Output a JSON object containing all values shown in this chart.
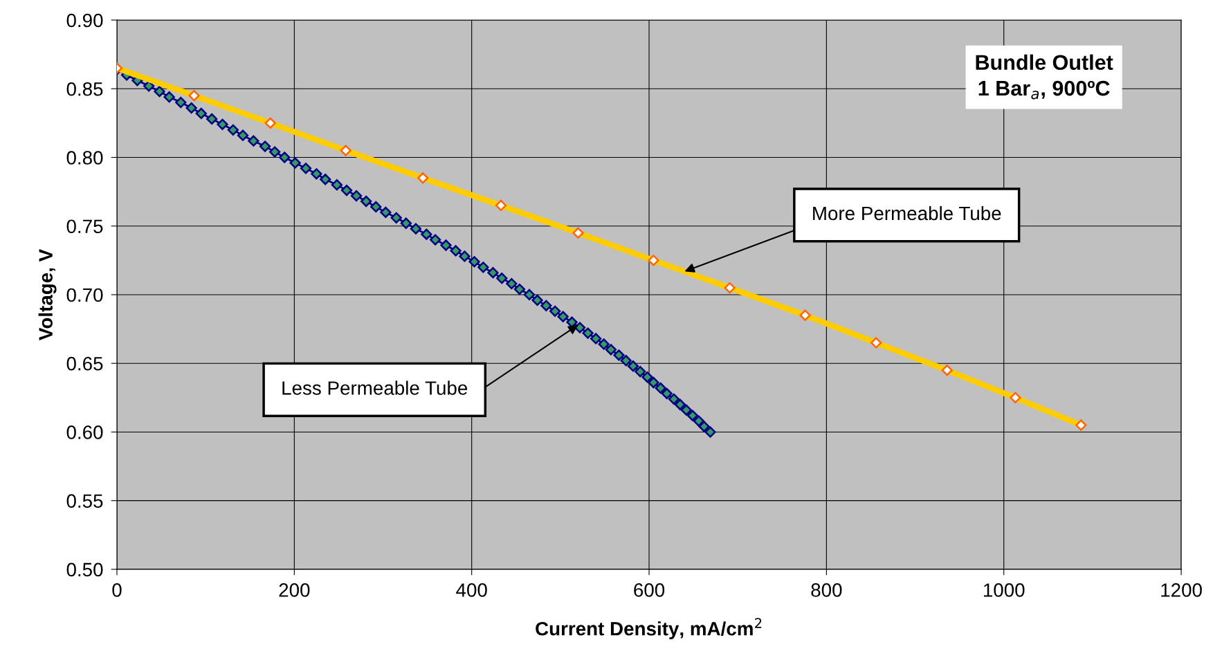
{
  "chart_data": {
    "type": "line",
    "xlabel": "Current Density, mA/cm$^{2}$",
    "ylabel": "Voltage, V",
    "xlim": [
      0,
      1200
    ],
    "xticks": [
      0,
      200,
      400,
      600,
      800,
      1000,
      1200
    ],
    "ylim": [
      0.5,
      0.9
    ],
    "yticks": [
      {
        "value": 0.5,
        "label": "0.50"
      },
      {
        "value": 0.55,
        "label": "0.55"
      },
      {
        "value": 0.6,
        "label": "0.60"
      },
      {
        "value": 0.65,
        "label": "0.65"
      },
      {
        "value": 0.7,
        "label": "0.70"
      },
      {
        "value": 0.75,
        "label": "0.75"
      },
      {
        "value": 0.8,
        "label": "0.80"
      },
      {
        "value": 0.85,
        "label": "0.85"
      },
      {
        "value": 0.9,
        "label": "0.90"
      }
    ],
    "grid": true,
    "marker": "diamond",
    "line_style": "solid",
    "series": [
      {
        "color": "#ffcc00",
        "x": [
          0,
          87,
          173,
          258,
          345,
          433,
          520,
          605,
          691,
          776,
          856,
          936,
          1013,
          1087
        ],
        "values": [
          0.865,
          0.845,
          0.825,
          0.805,
          0.785,
          0.765,
          0.745,
          0.725,
          0.705,
          0.685,
          0.665,
          0.645,
          0.625,
          0.605
        ]
      },
      {
        "color": "#000080",
        "x": [
          0,
          11,
          23,
          36,
          48,
          59,
          72,
          84,
          95,
          107,
          119,
          131,
          142,
          154,
          167,
          178,
          189,
          201,
          213,
          225,
          235,
          248,
          259,
          270,
          281,
          292,
          303,
          315,
          326,
          337,
          349,
          359,
          371,
          382,
          392,
          403,
          413,
          424,
          434,
          445,
          454,
          465,
          474,
          484,
          494,
          503,
          513,
          522,
          531,
          540,
          549,
          557,
          566,
          574,
          582,
          590,
          598,
          605,
          613,
          620,
          628,
          635,
          642,
          649,
          656,
          662,
          669
        ],
        "values": [
          0.864,
          0.86,
          0.856,
          0.852,
          0.848,
          0.844,
          0.84,
          0.836,
          0.832,
          0.828,
          0.824,
          0.82,
          0.816,
          0.812,
          0.808,
          0.804,
          0.8,
          0.796,
          0.792,
          0.788,
          0.784,
          0.78,
          0.776,
          0.772,
          0.768,
          0.764,
          0.76,
          0.756,
          0.752,
          0.748,
          0.744,
          0.74,
          0.736,
          0.732,
          0.728,
          0.724,
          0.72,
          0.716,
          0.712,
          0.708,
          0.704,
          0.7,
          0.696,
          0.692,
          0.688,
          0.684,
          0.68,
          0.676,
          0.672,
          0.668,
          0.664,
          0.66,
          0.656,
          0.652,
          0.648,
          0.644,
          0.64,
          0.636,
          0.632,
          0.628,
          0.624,
          0.62,
          0.616,
          0.612,
          0.608,
          0.604,
          0.6
        ]
      }
    ],
    "annotations": [
      "Bundle Outlet\n1 Bar$_{a}$, 900ºC",
      {
        "text": "More Permeable Tube",
        "x": 640,
        "y": 0.717
      },
      {
        "text": "Less Permeable Tube",
        "x": 520,
        "y": 0.678
      }
    ]
  }
}
